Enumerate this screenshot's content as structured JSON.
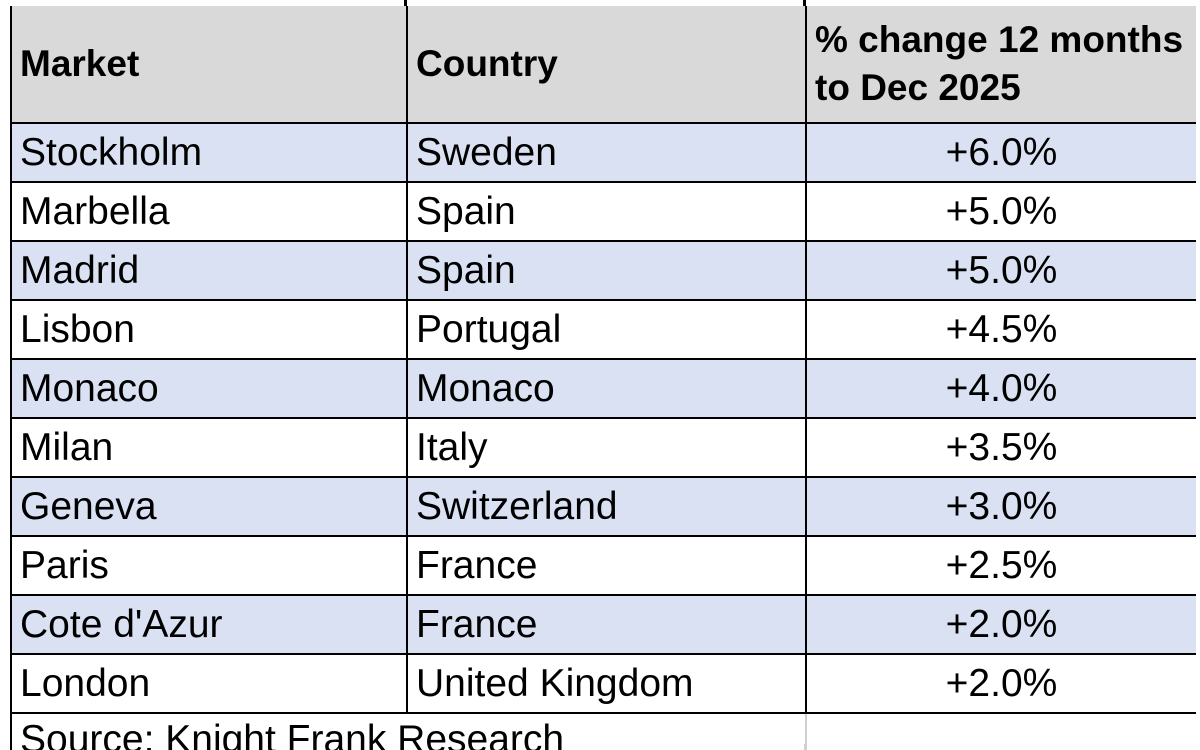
{
  "chart_data": {
    "type": "table",
    "title": "",
    "columns": [
      "Market",
      "Country",
      "% change 12 months to Dec 2025"
    ],
    "column_display": [
      "Market",
      "Country",
      "% change 12 months\nto Dec 2025"
    ],
    "rows": [
      [
        "Stockholm",
        "Sweden",
        "+6.0%"
      ],
      [
        "Marbella",
        "Spain",
        "+5.0%"
      ],
      [
        "Madrid",
        "Spain",
        "+5.0%"
      ],
      [
        "Lisbon",
        "Portugal",
        "+4.5%"
      ],
      [
        "Monaco",
        "Monaco",
        "+4.0%"
      ],
      [
        "Milan",
        "Italy",
        "+3.5%"
      ],
      [
        "Geneva",
        "Switzerland",
        "+3.0%"
      ],
      [
        "Paris",
        "France",
        "+2.5%"
      ],
      [
        "Cote d'Azur",
        "France",
        "+2.0%"
      ],
      [
        "London",
        "United Kingdom",
        "+2.0%"
      ]
    ],
    "values_numeric": [
      6.0,
      5.0,
      5.0,
      4.5,
      4.0,
      3.5,
      3.0,
      2.5,
      2.0,
      2.0
    ],
    "source": "Source: Knight Frank Research",
    "layout": {
      "legend": false,
      "grid": true,
      "banding": "alternate rows starting with first data row"
    }
  },
  "colors": {
    "header_bg": "#d9d9d9",
    "band_bg": "#d9e1f2",
    "row_bg": "#ffffff",
    "border": "#000000",
    "faint_gridline": "#d0d0d0",
    "text": "#000000"
  }
}
